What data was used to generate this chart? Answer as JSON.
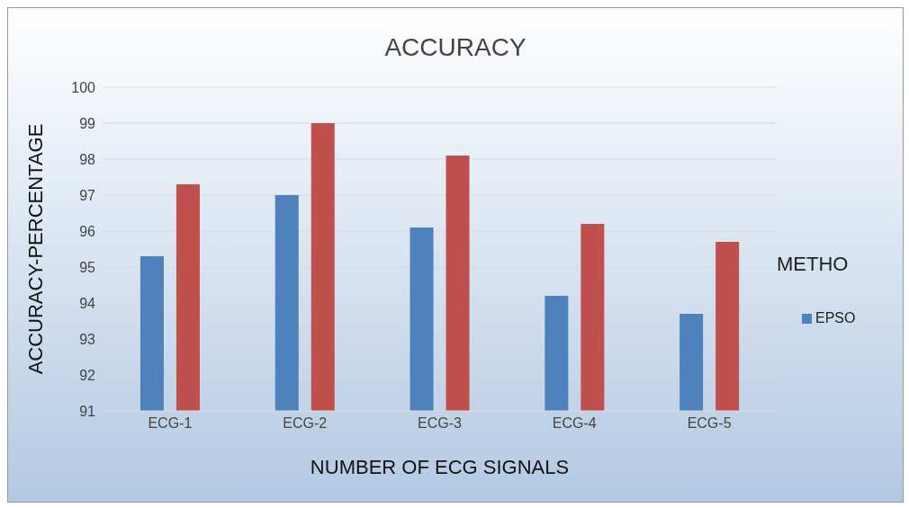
{
  "chart_data": {
    "type": "bar",
    "title": "ACCURACY",
    "xlabel": "NUMBER OF ECG SIGNALS",
    "ylabel": "ACCURACY-PERCENTAGE",
    "legend_title": "METHO",
    "categories": [
      "ECG-1",
      "ECG-2",
      "ECG-3",
      "ECG-4",
      "ECG-5"
    ],
    "series": [
      {
        "name": "EPSO",
        "color": "#4f81bd",
        "values": [
          95.3,
          97.0,
          96.1,
          94.2,
          93.7
        ]
      },
      {
        "color": "#c0504d",
        "values": [
          97.3,
          99.0,
          98.1,
          96.2,
          95.7
        ]
      }
    ],
    "ylim": [
      91,
      100
    ],
    "yticks": [
      91,
      92,
      93,
      94,
      95,
      96,
      97,
      98,
      99,
      100
    ],
    "grid": "y",
    "legend": "right"
  }
}
